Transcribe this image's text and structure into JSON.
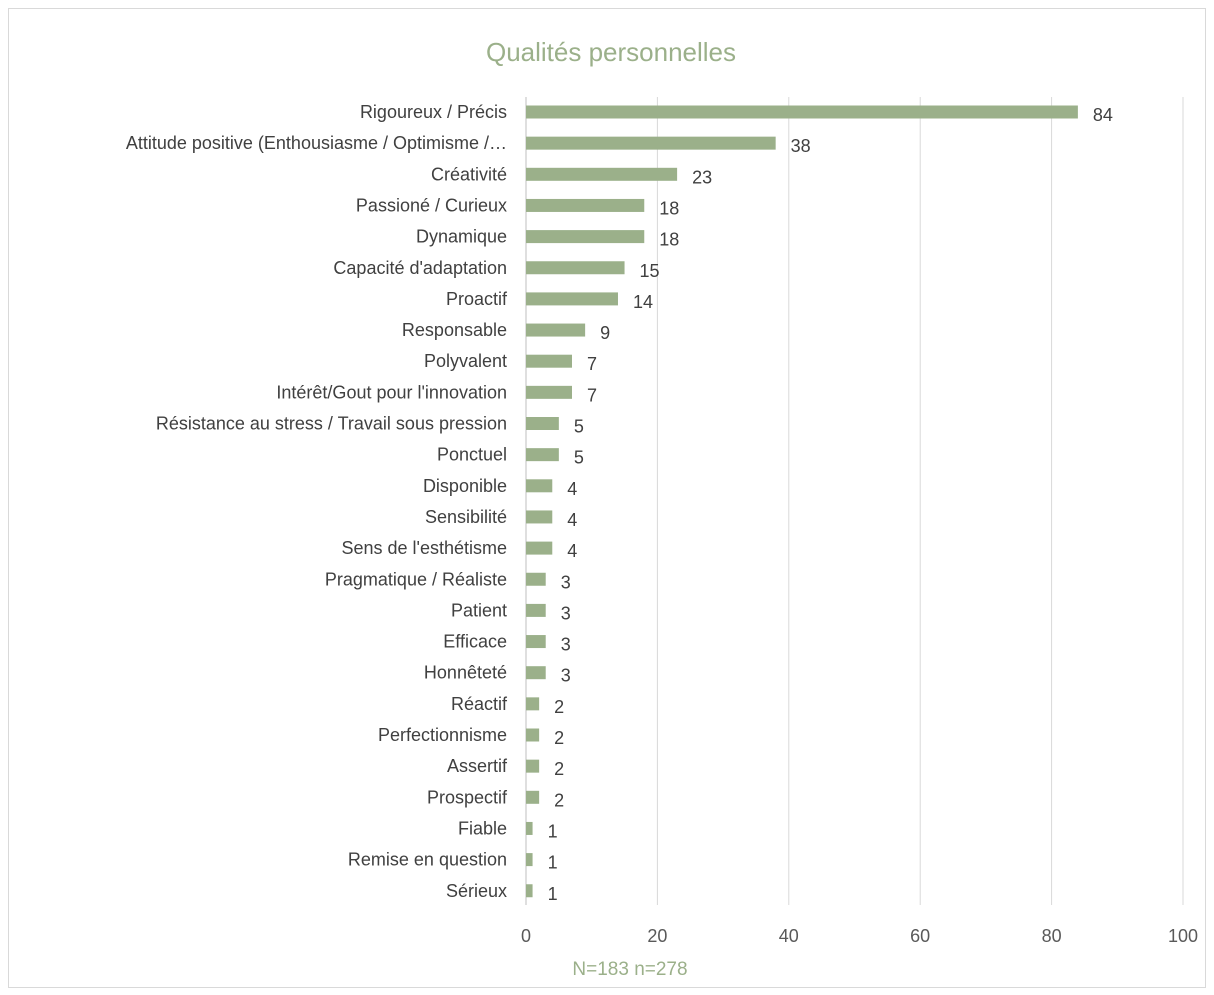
{
  "chart_data": {
    "type": "bar",
    "orientation": "horizontal",
    "title": "Qualités personnelles",
    "footnote": "N=183 n=278",
    "categories": [
      "Rigoureux / Précis",
      "Attitude positive (Enthousiasme / Optimisme /…",
      "Créativité",
      "Passioné / Curieux",
      "Dynamique",
      "Capacité d'adaptation",
      "Proactif",
      "Responsable",
      "Polyvalent",
      "Intérêt/Gout pour l'innovation",
      "Résistance au stress / Travail sous pression",
      "Ponctuel",
      "Disponible",
      "Sensibilité",
      "Sens de l'esthétisme",
      "Pragmatique / Réaliste",
      "Patient",
      "Efficace",
      "Honnêteté",
      "Réactif",
      "Perfectionnisme",
      "Assertif",
      "Prospectif",
      "Fiable",
      "Remise en question",
      "Sérieux"
    ],
    "values": [
      84,
      38,
      23,
      18,
      18,
      15,
      14,
      9,
      7,
      7,
      5,
      5,
      4,
      4,
      4,
      3,
      3,
      3,
      3,
      2,
      2,
      2,
      2,
      1,
      1,
      1
    ],
    "xlim": [
      0,
      100
    ],
    "xticks": [
      0,
      20,
      40,
      60,
      80,
      100
    ],
    "grid": true,
    "legend": "none",
    "bar_color": "#9bb08a"
  }
}
